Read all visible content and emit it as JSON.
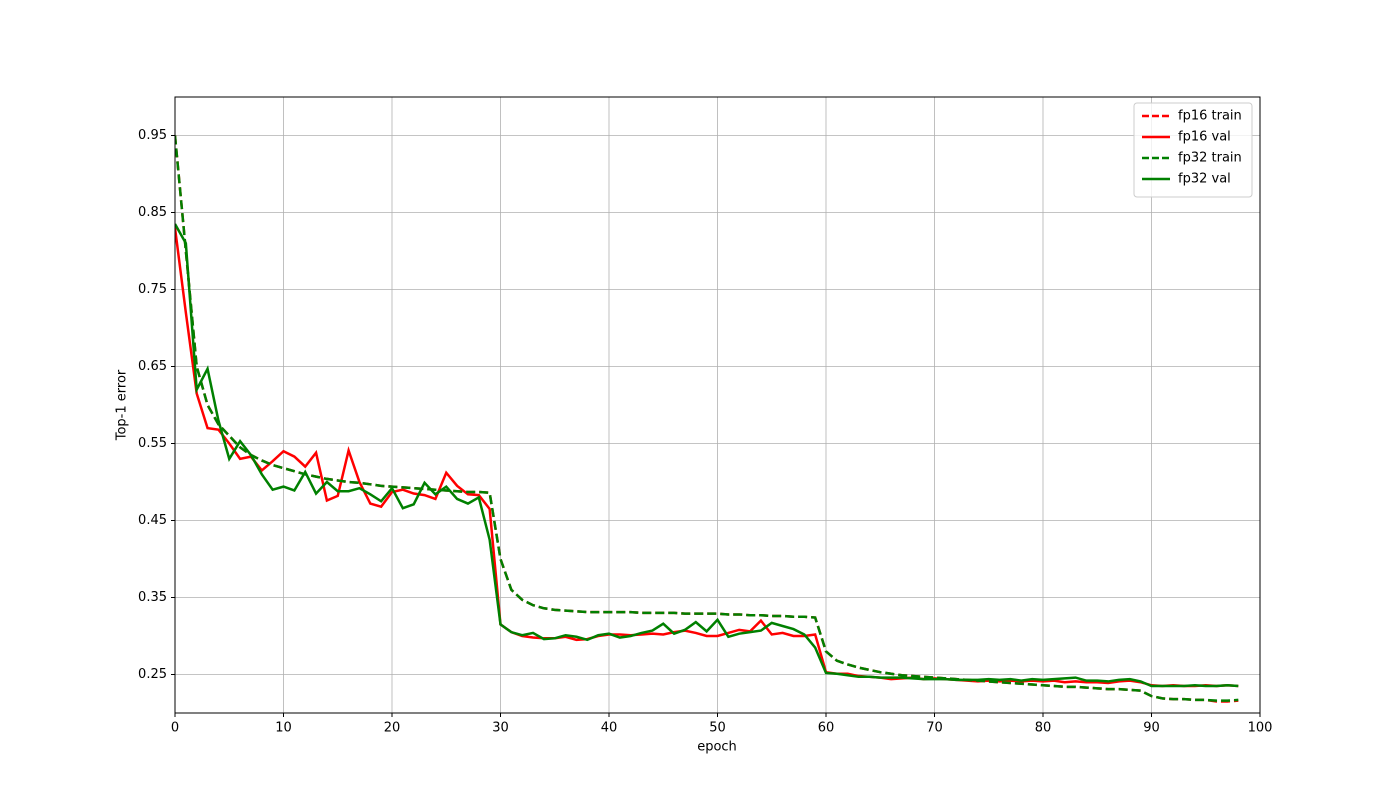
{
  "chart_data": {
    "type": "line",
    "x_label": "epoch",
    "y_label": "Top-1 error",
    "x": [
      0,
      1,
      2,
      3,
      4,
      5,
      6,
      7,
      8,
      9,
      10,
      11,
      12,
      13,
      14,
      15,
      16,
      17,
      18,
      19,
      20,
      21,
      22,
      23,
      24,
      25,
      26,
      27,
      28,
      29,
      30,
      31,
      32,
      33,
      34,
      35,
      36,
      37,
      38,
      39,
      40,
      41,
      42,
      43,
      44,
      45,
      46,
      47,
      48,
      49,
      50,
      51,
      52,
      53,
      54,
      55,
      56,
      57,
      58,
      59,
      60,
      61,
      62,
      63,
      64,
      65,
      66,
      67,
      68,
      69,
      70,
      71,
      72,
      73,
      74,
      75,
      76,
      77,
      78,
      79,
      80,
      81,
      82,
      83,
      84,
      85,
      86,
      87,
      88,
      89,
      90,
      91,
      92,
      93,
      94,
      95,
      96,
      97,
      98
    ],
    "series": [
      {
        "name": "fp16 train",
        "color": "#ff0000",
        "linestyle": "dashed",
        "values": [
          0.95,
          0.8,
          0.65,
          0.6,
          0.575,
          0.56,
          0.545,
          0.535,
          0.528,
          0.522,
          0.518,
          0.514,
          0.51,
          0.507,
          0.504,
          0.502,
          0.5,
          0.499,
          0.497,
          0.495,
          0.494,
          0.493,
          0.492,
          0.491,
          0.49,
          0.489,
          0.488,
          0.487,
          0.487,
          0.486,
          0.4,
          0.36,
          0.347,
          0.34,
          0.336,
          0.334,
          0.333,
          0.332,
          0.331,
          0.331,
          0.331,
          0.331,
          0.331,
          0.33,
          0.33,
          0.33,
          0.33,
          0.329,
          0.329,
          0.329,
          0.329,
          0.328,
          0.328,
          0.327,
          0.327,
          0.326,
          0.326,
          0.325,
          0.325,
          0.324,
          0.28,
          0.268,
          0.263,
          0.259,
          0.256,
          0.253,
          0.251,
          0.249,
          0.248,
          0.247,
          0.246,
          0.245,
          0.244,
          0.243,
          0.242,
          0.241,
          0.24,
          0.239,
          0.238,
          0.237,
          0.236,
          0.235,
          0.234,
          0.234,
          0.233,
          0.232,
          0.231,
          0.231,
          0.23,
          0.229,
          0.222,
          0.219,
          0.218,
          0.218,
          0.217,
          0.217,
          0.215,
          0.215,
          0.216
        ]
      },
      {
        "name": "fp16 val",
        "color": "#ff0000",
        "linestyle": "solid",
        "values": [
          0.83,
          0.72,
          0.615,
          0.57,
          0.568,
          0.55,
          0.53,
          0.533,
          0.515,
          0.527,
          0.54,
          0.533,
          0.52,
          0.538,
          0.476,
          0.482,
          0.541,
          0.5,
          0.472,
          0.468,
          0.487,
          0.49,
          0.485,
          0.483,
          0.478,
          0.512,
          0.495,
          0.484,
          0.483,
          0.465,
          0.315,
          0.305,
          0.3,
          0.298,
          0.297,
          0.297,
          0.299,
          0.295,
          0.296,
          0.3,
          0.302,
          0.302,
          0.301,
          0.302,
          0.303,
          0.302,
          0.305,
          0.307,
          0.304,
          0.3,
          0.3,
          0.304,
          0.308,
          0.306,
          0.32,
          0.302,
          0.304,
          0.3,
          0.3,
          0.302,
          0.253,
          0.251,
          0.251,
          0.248,
          0.247,
          0.246,
          0.244,
          0.245,
          0.246,
          0.244,
          0.245,
          0.244,
          0.243,
          0.242,
          0.241,
          0.242,
          0.241,
          0.242,
          0.241,
          0.242,
          0.241,
          0.242,
          0.24,
          0.241,
          0.24,
          0.24,
          0.239,
          0.241,
          0.242,
          0.24,
          0.236,
          0.235,
          0.236,
          0.235,
          0.235,
          0.236,
          0.235,
          0.236,
          0.235
        ]
      },
      {
        "name": "fp32 train",
        "color": "#008000",
        "linestyle": "dashed",
        "values": [
          0.95,
          0.8,
          0.65,
          0.6,
          0.575,
          0.56,
          0.545,
          0.535,
          0.528,
          0.522,
          0.518,
          0.514,
          0.51,
          0.507,
          0.504,
          0.502,
          0.5,
          0.499,
          0.497,
          0.495,
          0.494,
          0.493,
          0.492,
          0.491,
          0.49,
          0.489,
          0.488,
          0.487,
          0.487,
          0.486,
          0.4,
          0.36,
          0.347,
          0.34,
          0.336,
          0.334,
          0.333,
          0.332,
          0.331,
          0.331,
          0.331,
          0.331,
          0.331,
          0.33,
          0.33,
          0.33,
          0.33,
          0.329,
          0.329,
          0.329,
          0.329,
          0.328,
          0.328,
          0.327,
          0.327,
          0.326,
          0.326,
          0.325,
          0.325,
          0.324,
          0.28,
          0.268,
          0.263,
          0.259,
          0.256,
          0.253,
          0.251,
          0.249,
          0.248,
          0.247,
          0.246,
          0.245,
          0.244,
          0.243,
          0.242,
          0.241,
          0.24,
          0.239,
          0.238,
          0.237,
          0.236,
          0.235,
          0.234,
          0.234,
          0.233,
          0.232,
          0.231,
          0.231,
          0.23,
          0.229,
          0.222,
          0.219,
          0.218,
          0.218,
          0.217,
          0.217,
          0.216,
          0.216,
          0.217
        ]
      },
      {
        "name": "fp32 val",
        "color": "#008000",
        "linestyle": "solid",
        "values": [
          0.835,
          0.81,
          0.62,
          0.647,
          0.58,
          0.53,
          0.553,
          0.535,
          0.51,
          0.49,
          0.494,
          0.489,
          0.513,
          0.485,
          0.5,
          0.488,
          0.488,
          0.492,
          0.484,
          0.475,
          0.492,
          0.466,
          0.471,
          0.499,
          0.484,
          0.494,
          0.478,
          0.472,
          0.48,
          0.425,
          0.315,
          0.305,
          0.301,
          0.304,
          0.296,
          0.297,
          0.301,
          0.299,
          0.295,
          0.301,
          0.303,
          0.298,
          0.3,
          0.304,
          0.307,
          0.316,
          0.303,
          0.308,
          0.318,
          0.306,
          0.321,
          0.299,
          0.303,
          0.305,
          0.307,
          0.317,
          0.313,
          0.309,
          0.302,
          0.285,
          0.252,
          0.251,
          0.249,
          0.247,
          0.247,
          0.246,
          0.246,
          0.246,
          0.245,
          0.244,
          0.244,
          0.244,
          0.243,
          0.243,
          0.243,
          0.244,
          0.243,
          0.244,
          0.242,
          0.244,
          0.243,
          0.244,
          0.245,
          0.246,
          0.242,
          0.242,
          0.241,
          0.243,
          0.244,
          0.241,
          0.235,
          0.235,
          0.235,
          0.235,
          0.236,
          0.235,
          0.235,
          0.236,
          0.235
        ]
      }
    ],
    "xlim": [
      0,
      100
    ],
    "xticks": [
      0,
      10,
      20,
      30,
      40,
      50,
      60,
      70,
      80,
      90,
      100
    ],
    "ylim": [
      0.2,
      1.0
    ],
    "yticks": [
      0.25,
      0.35,
      0.45,
      0.55,
      0.65,
      0.75,
      0.85,
      0.95
    ],
    "grid": true,
    "legend": "upper right"
  }
}
